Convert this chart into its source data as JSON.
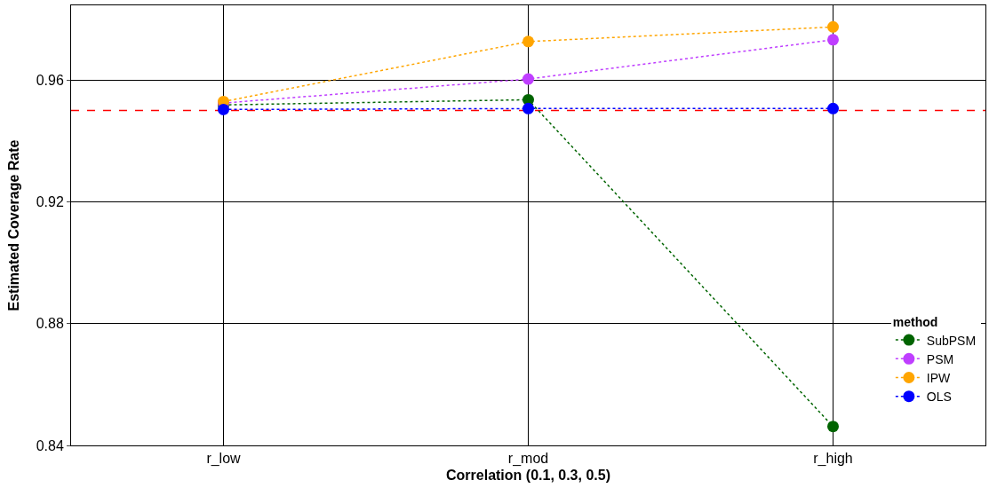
{
  "chart_data": {
    "type": "line",
    "xlabel": "Correlation (0.1, 0.3, 0.5)",
    "ylabel": "Estimated Coverage Rate",
    "legend_title": "method",
    "categories": [
      "r_low",
      "r_mod",
      "r_high"
    ],
    "series": [
      {
        "name": "SubPSM",
        "color": "#006400",
        "values": [
          0.9518,
          0.9535,
          0.8462
        ]
      },
      {
        "name": "PSM",
        "color": "#bf3eff",
        "values": [
          0.9524,
          0.9603,
          0.9732
        ]
      },
      {
        "name": "IPW",
        "color": "#ffa500",
        "values": [
          0.9529,
          0.9726,
          0.9774
        ]
      },
      {
        "name": "OLS",
        "color": "#0000ff",
        "values": [
          0.9503,
          0.9506,
          0.9506
        ]
      }
    ],
    "ylim": [
      0.84,
      0.9845
    ],
    "yticks": [
      0.84,
      0.88,
      0.92,
      0.96
    ],
    "ref_lines": [
      {
        "axis": "y",
        "value": 0.95,
        "color": "#ff0000",
        "line_style": "dashed"
      }
    ],
    "grid": true,
    "legend": "bottom right",
    "marker": "circle",
    "line_style": "dotted"
  }
}
